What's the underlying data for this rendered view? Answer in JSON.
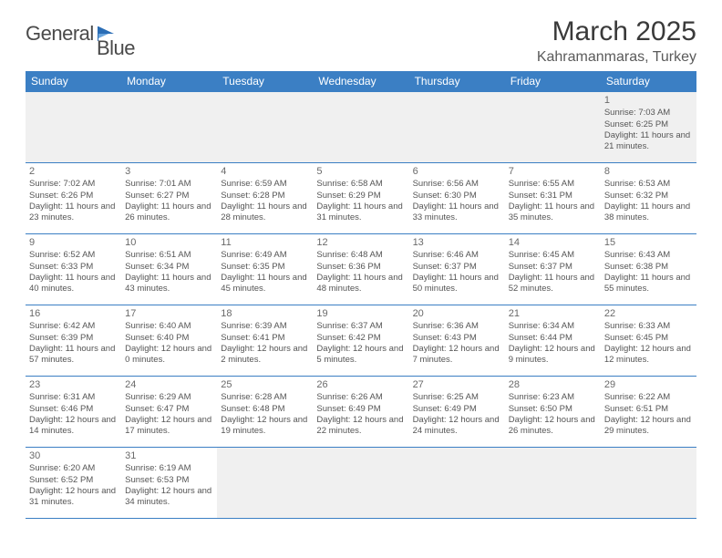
{
  "logo": {
    "part1": "General",
    "part2": "Blue"
  },
  "title": "March 2025",
  "location": "Kahramanmaras, Turkey",
  "colors": {
    "header_bg": "#3b7fc4",
    "header_fg": "#ffffff",
    "cell_border": "#3b7fc4",
    "week0_bg": "#f0f0f0",
    "text": "#555555",
    "title_color": "#3a3a3a"
  },
  "day_headers": [
    "Sunday",
    "Monday",
    "Tuesday",
    "Wednesday",
    "Thursday",
    "Friday",
    "Saturday"
  ],
  "weeks": [
    [
      null,
      null,
      null,
      null,
      null,
      null,
      {
        "n": "1",
        "sunrise": "Sunrise: 7:03 AM",
        "sunset": "Sunset: 6:25 PM",
        "daylight": "Daylight: 11 hours and 21 minutes."
      }
    ],
    [
      {
        "n": "2",
        "sunrise": "Sunrise: 7:02 AM",
        "sunset": "Sunset: 6:26 PM",
        "daylight": "Daylight: 11 hours and 23 minutes."
      },
      {
        "n": "3",
        "sunrise": "Sunrise: 7:01 AM",
        "sunset": "Sunset: 6:27 PM",
        "daylight": "Daylight: 11 hours and 26 minutes."
      },
      {
        "n": "4",
        "sunrise": "Sunrise: 6:59 AM",
        "sunset": "Sunset: 6:28 PM",
        "daylight": "Daylight: 11 hours and 28 minutes."
      },
      {
        "n": "5",
        "sunrise": "Sunrise: 6:58 AM",
        "sunset": "Sunset: 6:29 PM",
        "daylight": "Daylight: 11 hours and 31 minutes."
      },
      {
        "n": "6",
        "sunrise": "Sunrise: 6:56 AM",
        "sunset": "Sunset: 6:30 PM",
        "daylight": "Daylight: 11 hours and 33 minutes."
      },
      {
        "n": "7",
        "sunrise": "Sunrise: 6:55 AM",
        "sunset": "Sunset: 6:31 PM",
        "daylight": "Daylight: 11 hours and 35 minutes."
      },
      {
        "n": "8",
        "sunrise": "Sunrise: 6:53 AM",
        "sunset": "Sunset: 6:32 PM",
        "daylight": "Daylight: 11 hours and 38 minutes."
      }
    ],
    [
      {
        "n": "9",
        "sunrise": "Sunrise: 6:52 AM",
        "sunset": "Sunset: 6:33 PM",
        "daylight": "Daylight: 11 hours and 40 minutes."
      },
      {
        "n": "10",
        "sunrise": "Sunrise: 6:51 AM",
        "sunset": "Sunset: 6:34 PM",
        "daylight": "Daylight: 11 hours and 43 minutes."
      },
      {
        "n": "11",
        "sunrise": "Sunrise: 6:49 AM",
        "sunset": "Sunset: 6:35 PM",
        "daylight": "Daylight: 11 hours and 45 minutes."
      },
      {
        "n": "12",
        "sunrise": "Sunrise: 6:48 AM",
        "sunset": "Sunset: 6:36 PM",
        "daylight": "Daylight: 11 hours and 48 minutes."
      },
      {
        "n": "13",
        "sunrise": "Sunrise: 6:46 AM",
        "sunset": "Sunset: 6:37 PM",
        "daylight": "Daylight: 11 hours and 50 minutes."
      },
      {
        "n": "14",
        "sunrise": "Sunrise: 6:45 AM",
        "sunset": "Sunset: 6:37 PM",
        "daylight": "Daylight: 11 hours and 52 minutes."
      },
      {
        "n": "15",
        "sunrise": "Sunrise: 6:43 AM",
        "sunset": "Sunset: 6:38 PM",
        "daylight": "Daylight: 11 hours and 55 minutes."
      }
    ],
    [
      {
        "n": "16",
        "sunrise": "Sunrise: 6:42 AM",
        "sunset": "Sunset: 6:39 PM",
        "daylight": "Daylight: 11 hours and 57 minutes."
      },
      {
        "n": "17",
        "sunrise": "Sunrise: 6:40 AM",
        "sunset": "Sunset: 6:40 PM",
        "daylight": "Daylight: 12 hours and 0 minutes."
      },
      {
        "n": "18",
        "sunrise": "Sunrise: 6:39 AM",
        "sunset": "Sunset: 6:41 PM",
        "daylight": "Daylight: 12 hours and 2 minutes."
      },
      {
        "n": "19",
        "sunrise": "Sunrise: 6:37 AM",
        "sunset": "Sunset: 6:42 PM",
        "daylight": "Daylight: 12 hours and 5 minutes."
      },
      {
        "n": "20",
        "sunrise": "Sunrise: 6:36 AM",
        "sunset": "Sunset: 6:43 PM",
        "daylight": "Daylight: 12 hours and 7 minutes."
      },
      {
        "n": "21",
        "sunrise": "Sunrise: 6:34 AM",
        "sunset": "Sunset: 6:44 PM",
        "daylight": "Daylight: 12 hours and 9 minutes."
      },
      {
        "n": "22",
        "sunrise": "Sunrise: 6:33 AM",
        "sunset": "Sunset: 6:45 PM",
        "daylight": "Daylight: 12 hours and 12 minutes."
      }
    ],
    [
      {
        "n": "23",
        "sunrise": "Sunrise: 6:31 AM",
        "sunset": "Sunset: 6:46 PM",
        "daylight": "Daylight: 12 hours and 14 minutes."
      },
      {
        "n": "24",
        "sunrise": "Sunrise: 6:29 AM",
        "sunset": "Sunset: 6:47 PM",
        "daylight": "Daylight: 12 hours and 17 minutes."
      },
      {
        "n": "25",
        "sunrise": "Sunrise: 6:28 AM",
        "sunset": "Sunset: 6:48 PM",
        "daylight": "Daylight: 12 hours and 19 minutes."
      },
      {
        "n": "26",
        "sunrise": "Sunrise: 6:26 AM",
        "sunset": "Sunset: 6:49 PM",
        "daylight": "Daylight: 12 hours and 22 minutes."
      },
      {
        "n": "27",
        "sunrise": "Sunrise: 6:25 AM",
        "sunset": "Sunset: 6:49 PM",
        "daylight": "Daylight: 12 hours and 24 minutes."
      },
      {
        "n": "28",
        "sunrise": "Sunrise: 6:23 AM",
        "sunset": "Sunset: 6:50 PM",
        "daylight": "Daylight: 12 hours and 26 minutes."
      },
      {
        "n": "29",
        "sunrise": "Sunrise: 6:22 AM",
        "sunset": "Sunset: 6:51 PM",
        "daylight": "Daylight: 12 hours and 29 minutes."
      }
    ],
    [
      {
        "n": "30",
        "sunrise": "Sunrise: 6:20 AM",
        "sunset": "Sunset: 6:52 PM",
        "daylight": "Daylight: 12 hours and 31 minutes."
      },
      {
        "n": "31",
        "sunrise": "Sunrise: 6:19 AM",
        "sunset": "Sunset: 6:53 PM",
        "daylight": "Daylight: 12 hours and 34 minutes."
      },
      null,
      null,
      null,
      null,
      null
    ]
  ]
}
